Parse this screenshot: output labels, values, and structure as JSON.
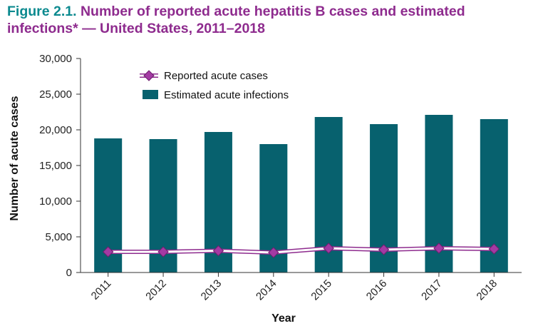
{
  "header": {
    "figure_label": "Figure 2.1.",
    "title": "Number of reported acute hepatitis B cases and estimated infections* — United States, 2011–2018"
  },
  "colors": {
    "bar": "#07616e",
    "line": "#8e2b8e",
    "marker": "#a33aa3",
    "title_label": "#0c8a8f",
    "title_text": "#8e2b8e"
  },
  "chart_data": {
    "type": "bar",
    "categories": [
      "2011",
      "2012",
      "2013",
      "2014",
      "2015",
      "2016",
      "2017",
      "2018"
    ],
    "series": [
      {
        "name": "Estimated acute infections",
        "type": "bar",
        "values": [
          18800,
          18700,
          19700,
          18000,
          21800,
          20800,
          22100,
          21500
        ]
      },
      {
        "name": "Reported acute cases",
        "type": "line",
        "values": [
          2900,
          2900,
          3050,
          2800,
          3400,
          3200,
          3400,
          3300
        ]
      }
    ],
    "xlabel": "Year",
    "ylabel": "Number of acute cases",
    "ylim": [
      0,
      30000
    ],
    "yticks": [
      "0",
      "5,000",
      "10,000",
      "15,000",
      "20,000",
      "25,000",
      "30,000"
    ],
    "grid": false,
    "legend_position": "top-left"
  }
}
